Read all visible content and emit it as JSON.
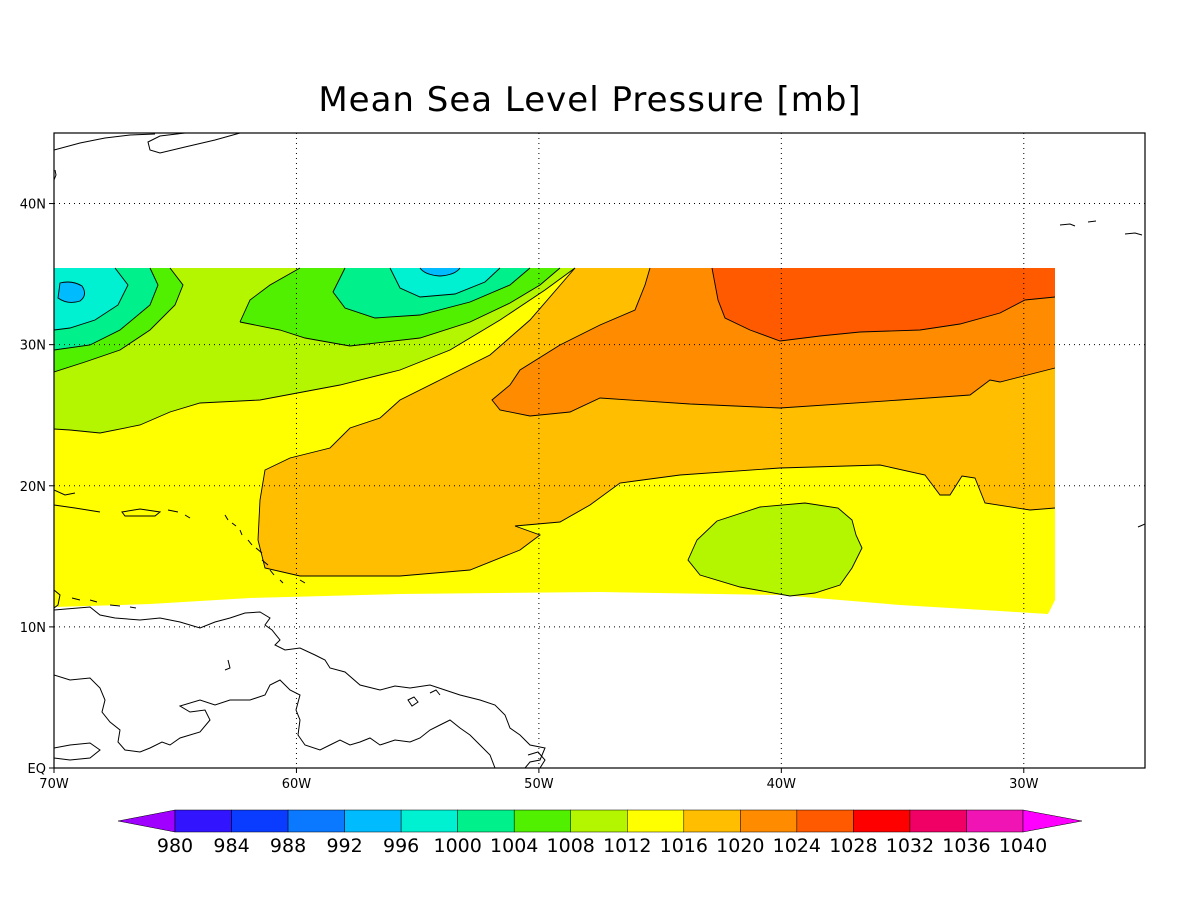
{
  "title": "Mean Sea Level Pressure [mb]",
  "map": {
    "lon_range": [
      -70,
      -25
    ],
    "lat_range": [
      0,
      45
    ],
    "lon_ticks": [
      {
        "value": -70,
        "label": "70W"
      },
      {
        "value": -60,
        "label": "60W"
      },
      {
        "value": -50,
        "label": "50W"
      },
      {
        "value": -40,
        "label": "40W"
      },
      {
        "value": -30,
        "label": "30W"
      }
    ],
    "lat_ticks": [
      {
        "value": 0,
        "label": "EQ"
      },
      {
        "value": 10,
        "label": "10N"
      },
      {
        "value": 20,
        "label": "20N"
      },
      {
        "value": 30,
        "label": "30N"
      },
      {
        "value": 40,
        "label": "40N"
      }
    ],
    "gridlines": true
  },
  "colorbar": {
    "levels": [
      "980",
      "984",
      "988",
      "992",
      "996",
      "1000",
      "1004",
      "1008",
      "1012",
      "1016",
      "1020",
      "1024",
      "1028",
      "1032",
      "1036",
      "1040"
    ],
    "colors": [
      "#a000ff",
      "#3214ff",
      "#0a3cff",
      "#0a78ff",
      "#00bcff",
      "#00f0d2",
      "#00f08c",
      "#50f000",
      "#b4f500",
      "#ffff00",
      "#ffbe00",
      "#ff8c00",
      "#ff5a00",
      "#ff0000",
      "#f00064",
      "#f014b4",
      "#ff00ff"
    ]
  }
}
